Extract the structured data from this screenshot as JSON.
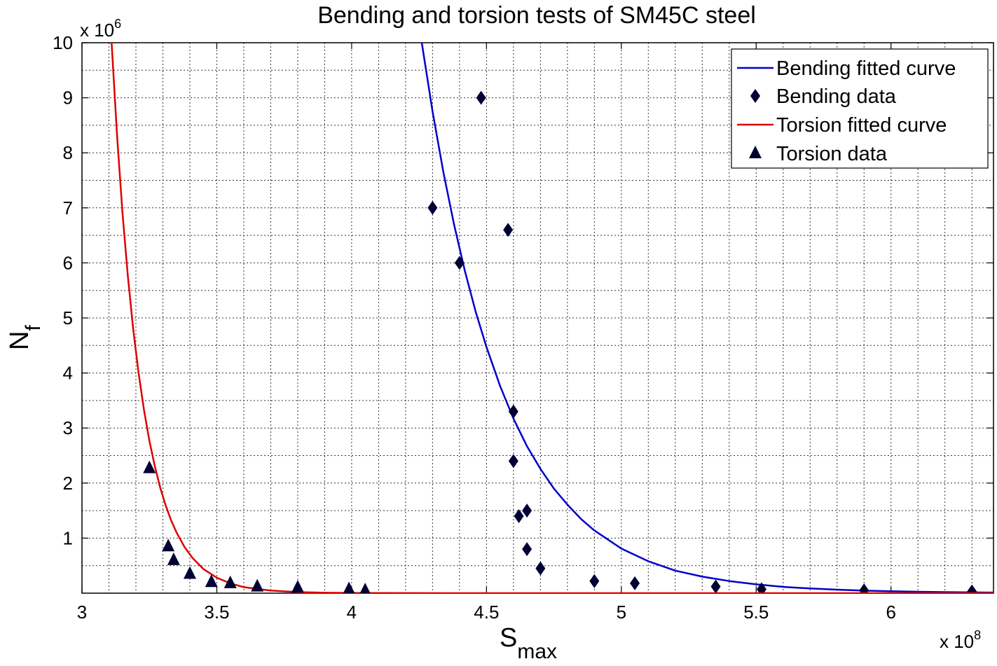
{
  "chart_data": {
    "type": "scatter",
    "title": "Bending and torsion tests of SM45C steel",
    "xlabel": {
      "main": "S",
      "sub": "max"
    },
    "ylabel": {
      "main": "N",
      "sub": "f"
    },
    "x_multiplier": {
      "base": "x 10",
      "exp": "8"
    },
    "y_multiplier": {
      "base": "x 10",
      "exp": "6"
    },
    "xlim": [
      3.0,
      6.38
    ],
    "ylim": [
      0,
      10
    ],
    "x_ticks": [
      "3",
      "3.5",
      "4",
      "4.5",
      "5",
      "5.5",
      "6"
    ],
    "y_ticks": [
      "1",
      "2",
      "3",
      "4",
      "5",
      "6",
      "7",
      "8",
      "9",
      "10"
    ],
    "grid": true,
    "legend_position": "top-right",
    "series": [
      {
        "name": "Bending fitted curve",
        "kind": "line",
        "color": "#0000cc",
        "x": [
          4.26,
          4.3,
          4.34,
          4.38,
          4.42,
          4.46,
          4.5,
          4.55,
          4.6,
          4.65,
          4.7,
          4.75,
          4.8,
          4.85,
          4.9,
          5.0,
          5.1,
          5.2,
          5.3,
          5.4,
          5.5,
          5.6,
          5.7,
          5.8,
          5.9,
          6.0,
          6.1,
          6.2,
          6.3,
          6.38
        ],
        "y": [
          10.0,
          8.75,
          7.65,
          6.69,
          5.85,
          5.11,
          4.47,
          3.77,
          3.17,
          2.67,
          2.26,
          1.9,
          1.61,
          1.35,
          1.14,
          0.81,
          0.58,
          0.41,
          0.3,
          0.22,
          0.16,
          0.115,
          0.085,
          0.063,
          0.046,
          0.034,
          0.025,
          0.019,
          0.014,
          0.011
        ]
      },
      {
        "name": "Bending data",
        "kind": "marker",
        "marker": "diamond",
        "color": "#000033",
        "x": [
          4.3,
          4.4,
          4.48,
          4.58,
          4.6,
          4.6,
          4.62,
          4.65,
          4.65,
          4.7,
          4.9,
          5.05,
          5.35,
          5.52,
          5.9,
          6.3
        ],
        "y": [
          7.0,
          6.0,
          9.0,
          6.6,
          3.3,
          2.4,
          1.4,
          1.5,
          0.8,
          0.45,
          0.22,
          0.18,
          0.12,
          0.07,
          0.05,
          0.03
        ]
      },
      {
        "name": "Torsion fitted curve",
        "kind": "line",
        "color": "#dd0000",
        "x": [
          3.11,
          3.13,
          3.15,
          3.17,
          3.19,
          3.21,
          3.23,
          3.25,
          3.27,
          3.29,
          3.31,
          3.33,
          3.35,
          3.38,
          3.41,
          3.45,
          3.5,
          3.55,
          3.6,
          3.7,
          3.8,
          3.9,
          4.0,
          4.2,
          4.5,
          5.0,
          5.5,
          6.0,
          6.38
        ],
        "y": [
          10.0,
          8.33,
          6.93,
          5.77,
          4.8,
          4.0,
          3.33,
          2.77,
          2.31,
          1.92,
          1.6,
          1.33,
          1.11,
          0.84,
          0.64,
          0.44,
          0.28,
          0.18,
          0.11,
          0.047,
          0.019,
          0.008,
          0.003,
          0.001,
          0.0,
          0.0,
          0.0,
          0.0,
          0.0
        ]
      },
      {
        "name": "Torsion data",
        "kind": "marker",
        "marker": "triangle",
        "color": "#000033",
        "x": [
          3.25,
          3.32,
          3.34,
          3.4,
          3.48,
          3.55,
          3.65,
          3.8,
          3.99,
          4.05
        ],
        "y": [
          2.27,
          0.85,
          0.6,
          0.35,
          0.2,
          0.18,
          0.12,
          0.1,
          0.07,
          0.05
        ]
      }
    ]
  }
}
